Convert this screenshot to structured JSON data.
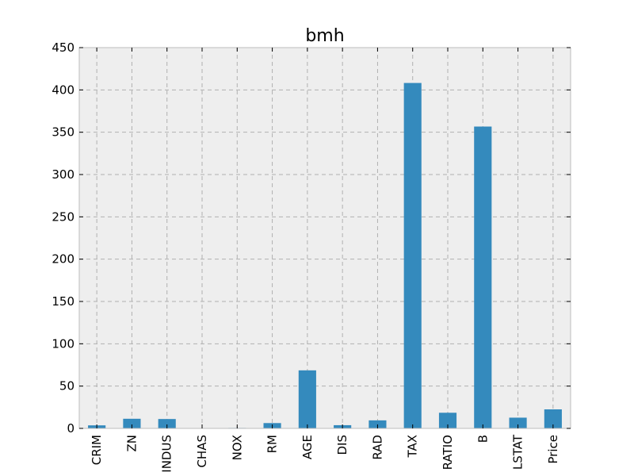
{
  "chart_data": {
    "type": "bar",
    "title": "bmh",
    "xlabel": "",
    "ylabel": "",
    "categories": [
      "CRIM",
      "ZN",
      "INDUS",
      "CHAS",
      "NOX",
      "RM",
      "AGE",
      "DIS",
      "RAD",
      "TAX",
      "RATIO",
      "B",
      "LSTAT",
      "Price"
    ],
    "values": [
      3.6,
      11.4,
      11.1,
      0.07,
      0.55,
      6.3,
      68.6,
      3.8,
      9.5,
      408.2,
      18.5,
      356.7,
      12.7,
      22.5
    ],
    "ylim": [
      0,
      450
    ],
    "yticks": [
      0,
      50,
      100,
      150,
      200,
      250,
      300,
      350,
      400,
      450
    ],
    "grid": true,
    "bar_color": "#348abd",
    "background_color": "#eeeeee"
  }
}
